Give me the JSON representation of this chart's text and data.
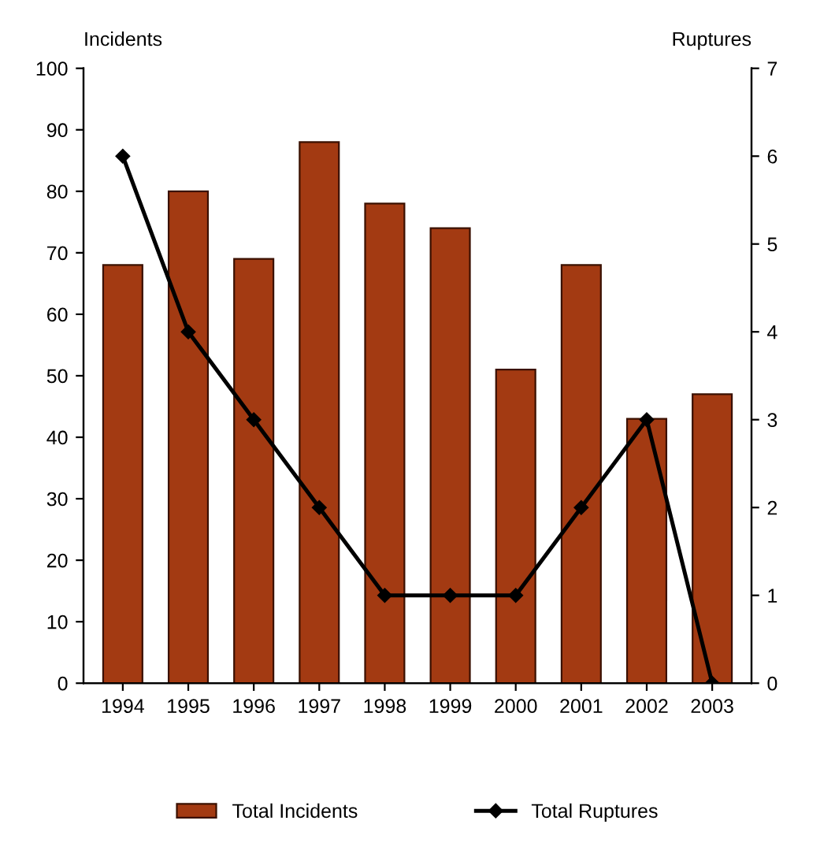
{
  "chart_data": {
    "type": "bar",
    "ylabel": "Incidents",
    "y2label": "Ruptures",
    "categories": [
      "1994",
      "1995",
      "1996",
      "1997",
      "1998",
      "1999",
      "2000",
      "2001",
      "2002",
      "2003"
    ],
    "series": [
      {
        "name": "Total Incidents",
        "color": "#a33a12",
        "values": [
          68,
          80,
          69,
          88,
          78,
          74,
          51,
          68,
          43,
          47
        ]
      },
      {
        "name": "Total Ruptures",
        "type": "line",
        "axis": "y2",
        "color": "#000000",
        "values": [
          6,
          4,
          3,
          2,
          1,
          1,
          1,
          2,
          3,
          0
        ]
      }
    ],
    "ylim": [
      0,
      100
    ],
    "yticks": [
      0,
      10,
      20,
      30,
      40,
      50,
      60,
      70,
      80,
      90,
      100
    ],
    "y2lim": [
      0,
      7
    ],
    "y2ticks": [
      0,
      1,
      2,
      3,
      4,
      5,
      6,
      7
    ],
    "marker": "diamond",
    "grid": false,
    "legend": "bottom"
  }
}
